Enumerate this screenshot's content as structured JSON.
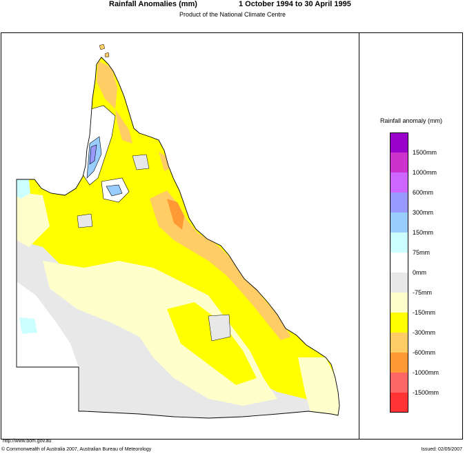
{
  "header": {
    "title": "Rainfall Anomalies (mm)",
    "period": "1 October 1994 to 30 April 1995",
    "subtitle": "Product of the National Climate Centre"
  },
  "legend": {
    "title": "Rainfall anomaly (mm)",
    "bins": [
      {
        "color": "#9900cc",
        "label": "1500mm"
      },
      {
        "color": "#cc33cc",
        "label": "1000mm"
      },
      {
        "color": "#cc66ff",
        "label": "600mm"
      },
      {
        "color": "#9999ff",
        "label": "300mm"
      },
      {
        "color": "#99ccff",
        "label": "150mm"
      },
      {
        "color": "#ccffff",
        "label": "75mm"
      },
      {
        "color": "#ffffff",
        "label": "0mm"
      },
      {
        "color": "#e8e8e8",
        "label": "-75mm"
      },
      {
        "color": "#ffffcc",
        "label": "-150mm"
      },
      {
        "color": "#ffff00",
        "label": "-300mm"
      },
      {
        "color": "#ffcc66",
        "label": "-600mm"
      },
      {
        "color": "#ff9933",
        "label": "-1000mm"
      },
      {
        "color": "#ff6666",
        "label": "-1500mm"
      },
      {
        "color": "#ff3333",
        "label": ""
      }
    ]
  },
  "map": {
    "region": "Queensland",
    "dominant_anomaly": "negative"
  },
  "footer": {
    "url": "http://www.bom.gov.au",
    "copyright": "© Commonwealth of Australia 2007, Australian Bureau of Meteorology",
    "issued": "Issued: 02/05/2007"
  }
}
